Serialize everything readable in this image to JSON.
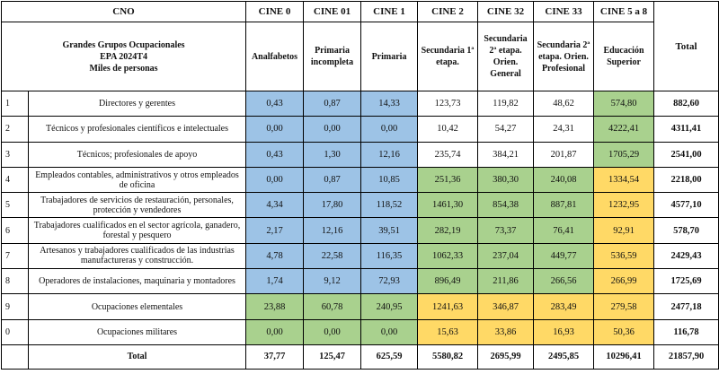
{
  "header": {
    "cno_label": "CNO",
    "title_line1": "Grandes Grupos Ocupacionales",
    "title_line2": "EPA 2024T4",
    "title_line3": "Miles de personas",
    "columns": [
      {
        "code": "CINE 0",
        "desc": "Analfabetos"
      },
      {
        "code": "CINE 01",
        "desc": "Primaria incompleta"
      },
      {
        "code": "CINE 1",
        "desc": "Primaria"
      },
      {
        "code": "CINE 2",
        "desc": "Secundaria 1ª etapa."
      },
      {
        "code": "CINE 32",
        "desc": "Secundaria 2ª etapa. Orien. General"
      },
      {
        "code": "CINE 33",
        "desc": "Secundaria 2ª etapa. Orien. Profesional"
      },
      {
        "code": "CINE 5 a 8",
        "desc": "Educación Superior"
      }
    ],
    "total_label": "Total"
  },
  "colors": {
    "blue": "#9dc3e6",
    "green": "#a9d18e",
    "yellow": "#ffd966"
  },
  "rows": [
    {
      "idx": "1",
      "label": "Directores y gerentes",
      "values": [
        "0,43",
        "0,87",
        "14,33",
        "123,73",
        "119,82",
        "48,62",
        "574,80"
      ],
      "colors": [
        "blue",
        "blue",
        "blue",
        "white",
        "white",
        "white",
        "green"
      ],
      "total": "882,60"
    },
    {
      "idx": "2",
      "label": "Técnicos y profesionales científicos e intelectuales",
      "values": [
        "0,00",
        "0,00",
        "0,00",
        "10,42",
        "54,27",
        "24,31",
        "4222,41"
      ],
      "colors": [
        "blue",
        "blue",
        "blue",
        "white",
        "white",
        "white",
        "green"
      ],
      "total": "4311,41"
    },
    {
      "idx": "3",
      "label": "Técnicos; profesionales de apoyo",
      "values": [
        "0,43",
        "1,30",
        "12,16",
        "235,74",
        "384,21",
        "201,87",
        "1705,29"
      ],
      "colors": [
        "blue",
        "blue",
        "blue",
        "white",
        "white",
        "white",
        "green"
      ],
      "total": "2541,00"
    },
    {
      "idx": "4",
      "label": "Empleados contables, administrativos y otros empleados de oficina",
      "values": [
        "0,00",
        "0,87",
        "10,85",
        "251,36",
        "380,30",
        "240,08",
        "1334,54"
      ],
      "colors": [
        "blue",
        "blue",
        "blue",
        "green",
        "green",
        "green",
        "yellow"
      ],
      "total": "2218,00"
    },
    {
      "idx": "5",
      "label": "Trabajadores de servicios de restauración, personales, protección y vendedores",
      "values": [
        "4,34",
        "17,80",
        "118,52",
        "1461,30",
        "854,38",
        "887,81",
        "1232,95"
      ],
      "colors": [
        "blue",
        "blue",
        "blue",
        "green",
        "green",
        "green",
        "yellow"
      ],
      "total": "4577,10"
    },
    {
      "idx": "6",
      "label": "Trabajadores cualificados en el sector agrícola, ganadero, forestal y pesquero",
      "values": [
        "2,17",
        "12,16",
        "39,51",
        "282,19",
        "73,37",
        "76,41",
        "92,91"
      ],
      "colors": [
        "blue",
        "blue",
        "blue",
        "green",
        "green",
        "green",
        "yellow"
      ],
      "total": "578,70"
    },
    {
      "idx": "7",
      "label": "Artesanos y trabajadores cualificados de las industrias manufactureras y construcción.",
      "values": [
        "4,78",
        "22,58",
        "116,35",
        "1062,33",
        "237,04",
        "449,77",
        "536,59"
      ],
      "colors": [
        "blue",
        "blue",
        "blue",
        "green",
        "green",
        "green",
        "yellow"
      ],
      "total": "2429,43"
    },
    {
      "idx": "8",
      "label": "Operadores de instalaciones, maquinaria y montadores",
      "values": [
        "1,74",
        "9,12",
        "72,93",
        "896,49",
        "211,86",
        "266,56",
        "266,99"
      ],
      "colors": [
        "blue",
        "blue",
        "blue",
        "green",
        "green",
        "green",
        "yellow"
      ],
      "total": "1725,69"
    },
    {
      "idx": "9",
      "label": "Ocupaciones elementales",
      "values": [
        "23,88",
        "60,78",
        "240,95",
        "1241,63",
        "346,87",
        "283,49",
        "279,58"
      ],
      "colors": [
        "green",
        "green",
        "green",
        "yellow",
        "yellow",
        "yellow",
        "yellow"
      ],
      "total": "2477,18"
    },
    {
      "idx": "0",
      "label": "Ocupaciones militares",
      "values": [
        "0,00",
        "0,00",
        "0,00",
        "15,63",
        "33,86",
        "16,93",
        "50,36"
      ],
      "colors": [
        "green",
        "green",
        "green",
        "yellow",
        "yellow",
        "yellow",
        "yellow"
      ],
      "total": "116,78"
    }
  ],
  "totals": {
    "label": "Total",
    "values": [
      "37,77",
      "125,47",
      "625,59",
      "5580,82",
      "2695,99",
      "2495,85",
      "10296,41"
    ],
    "grand": "21857,90"
  }
}
